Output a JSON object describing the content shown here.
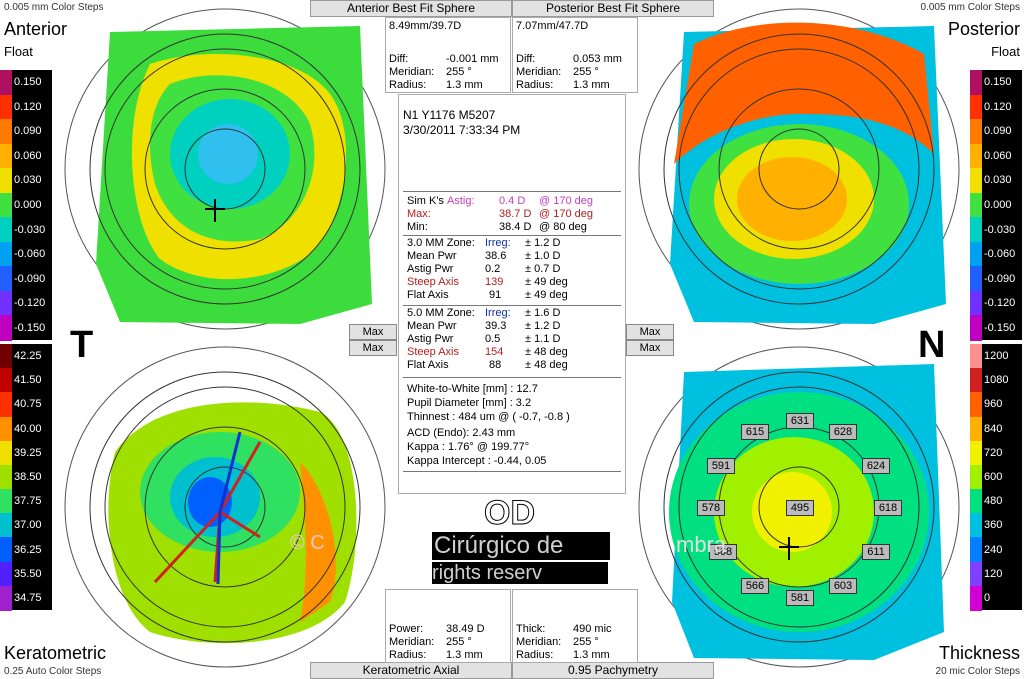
{
  "top_left": {
    "steps": "0.005 mm Color Steps",
    "title": "Anterior",
    "subtitle": "Float"
  },
  "top_right": {
    "steps": "0.005 mm Color Steps",
    "title": "Posterior",
    "subtitle": "Float"
  },
  "bottom_left": {
    "title": "Keratometric",
    "steps": "0.25 Auto Color Steps"
  },
  "bottom_right": {
    "title": "Thickness",
    "steps": "20 mic Color Steps"
  },
  "headers": {
    "anterior_bfs": "Anterior Best Fit Sphere",
    "posterior_bfs": "Posterior Best Fit Sphere",
    "keratometric_axial": "Keratometric Axial",
    "pachymetry": "0.95 Pachymetry"
  },
  "bfs_anterior": {
    "value": "8.49mm/39.7D",
    "diff_label": "Diff:",
    "diff": "-0.001 mm",
    "meridian_label": "Meridian:",
    "meridian": "255 °",
    "radius_label": "Radius:",
    "radius": "1.3 mm"
  },
  "bfs_posterior": {
    "value": "7.07mm/47.7D",
    "diff_label": "Diff:",
    "diff": "0.053 mm",
    "meridian_label": "Meridian:",
    "meridian": "255 °",
    "radius_label": "Radius:",
    "radius": "1.3 mm"
  },
  "bottom_power": {
    "power_label": "Power:",
    "power": "38.49 D",
    "meridian_label": "Meridian:",
    "meridian": "255 °",
    "radius_label": "Radius:",
    "radius": "1.3 mm"
  },
  "bottom_thick": {
    "thick_label": "Thick:",
    "thick": "490 mic",
    "meridian_label": "Meridian:",
    "meridian": "255 °",
    "radius_label": "Radius:",
    "radius": "1.3 mm"
  },
  "info": {
    "id": "N1 Y1176 M5207",
    "date": "3/30/2011 7:33:34 PM",
    "simk_label": "Sim K's",
    "astig_label": "Astig:",
    "astig_val": "0.4 D",
    "astig_deg": "@ 170 deg",
    "max_label": "Max:",
    "max_val": "38.7 D",
    "max_deg": "@ 170 deg",
    "min_label": "Min:",
    "min_val": "38.4 D",
    "min_deg": "@ 80 deg",
    "z3_label": "3.0 MM Zone:",
    "z3_irreg_label": "Irreg:",
    "z3_irreg": "± 1.2 D",
    "z3_mean_label": "Mean Pwr",
    "z3_mean": "38.6",
    "z3_mean_pm": "± 1.0 D",
    "z3_astig_label": "Astig Pwr",
    "z3_astig": "0.2",
    "z3_astig_pm": "± 0.7 D",
    "z3_steep_label": "Steep Axis",
    "z3_steep": "139",
    "z3_steep_pm": "± 49 deg",
    "z3_flat_label": "Flat Axis",
    "z3_flat": "91",
    "z3_flat_pm": "± 49 deg",
    "z5_label": "5.0 MM Zone:",
    "z5_irreg_label": "Irreg:",
    "z5_irreg": "± 1.6 D",
    "z5_mean_label": "Mean Pwr",
    "z5_mean": "39.3",
    "z5_mean_pm": "± 1.2 D",
    "z5_astig_label": "Astig Pwr",
    "z5_astig": "0.5",
    "z5_astig_pm": "± 1.1 D",
    "z5_steep_label": "Steep Axis",
    "z5_steep": "154",
    "z5_steep_pm": "± 48 deg",
    "z5_flat_label": "Flat Axis",
    "z5_flat": "88",
    "z5_flat_pm": "± 48 deg",
    "wtw": "White-to-White [mm] : 12.7",
    "pupil": "Pupil Diameter [mm] :  3.2",
    "thinnest": "Thinnest : 484 um @ ( -0.7, -0.8 )",
    "acd": "ACD (Endo): 2.43 mm",
    "kappa": "Kappa : 1.76° @ 199.77°",
    "kappa_int": "Kappa Intercept : -0.44, 0.05"
  },
  "buttons": {
    "max": "Max"
  },
  "letters": {
    "t": "T",
    "n": "N",
    "od": "OD"
  },
  "watermark": {
    "line1": "© C",
    "line2": "Cirúrgico de",
    "line3": "mbra",
    "line4": "rights reserv"
  },
  "float_scale": [
    "0.150",
    "0.120",
    "0.090",
    "0.060",
    "0.030",
    "0.000",
    "-0.030",
    "-0.060",
    "-0.090",
    "-0.120",
    "-0.150"
  ],
  "kerat_scale": [
    "42.25",
    "41.50",
    "40.75",
    "40.00",
    "39.25",
    "38.50",
    "37.75",
    "37.00",
    "36.25",
    "35.50",
    "34.75"
  ],
  "thick_scale": [
    "1200",
    "1080",
    "960",
    "840",
    "720",
    "600",
    "480",
    "360",
    "240",
    "120",
    "0"
  ],
  "float_colors": [
    "#b01060",
    "#ff3000",
    "#ff7a00",
    "#ffb000",
    "#f0e000",
    "#40e040",
    "#00d0c0",
    "#00a0f0",
    "#2060ff",
    "#7030ff",
    "#c000c0"
  ],
  "kerat_colors": [
    "#700000",
    "#c00000",
    "#ff3000",
    "#ff9000",
    "#f0e000",
    "#a0e000",
    "#30e060",
    "#00c0d0",
    "#0060ff",
    "#5020ff",
    "#a020d0"
  ],
  "thick_colors": [
    "#ff9090",
    "#d02020",
    "#ff6000",
    "#ffb000",
    "#f0f000",
    "#a0f000",
    "#00e080",
    "#00c0e0",
    "#0080ff",
    "#8040ff",
    "#d000d0"
  ],
  "pachy_points": [
    "631",
    "615",
    "628",
    "591",
    "624",
    "578",
    "495",
    "618",
    "568",
    "611",
    "566",
    "603",
    "581"
  ]
}
